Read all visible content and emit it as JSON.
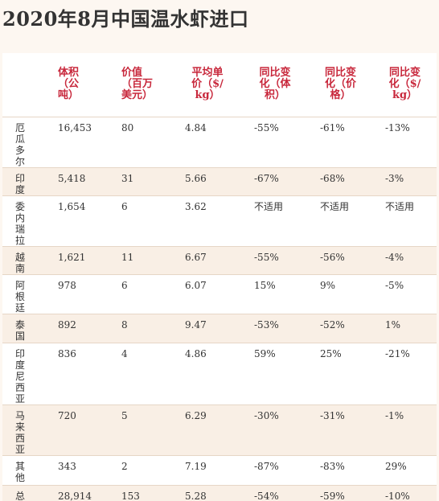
{
  "title": "2020年8月中国温水虾进口",
  "table": {
    "headers": [
      "",
      "体积（公吨）",
      "价值（百万美元）",
      "平均单价（$/kg）",
      "同比变化（体积）",
      "同比变化（价格）",
      "同比变化（$/kg）"
    ],
    "rows": [
      [
        "厄瓜多尔",
        "16,453",
        "80",
        "4.84",
        "-55%",
        "-61%",
        "-13%"
      ],
      [
        "印度",
        "5,418",
        "31",
        "5.66",
        "-67%",
        "-68%",
        "-3%"
      ],
      [
        "委内瑞拉",
        "1,654",
        "6",
        "3.62",
        "不适用",
        "不适用",
        "不适用"
      ],
      [
        "越南",
        "1,621",
        "11",
        "6.67",
        "-55%",
        "-56%",
        "-4%"
      ],
      [
        "阿根廷",
        "978",
        "6",
        "6.07",
        "15%",
        "9%",
        "-5%"
      ],
      [
        "泰国",
        "892",
        "8",
        "9.47",
        "-53%",
        "-52%",
        "1%"
      ],
      [
        "印度尼西亚",
        "836",
        "4",
        "4.86",
        "59%",
        "25%",
        "-21%"
      ],
      [
        "马来西亚",
        "720",
        "5",
        "6.29",
        "-30%",
        "-31%",
        "-1%"
      ],
      [
        "其他",
        "343",
        "2",
        "7.19",
        "-87%",
        "-83%",
        "29%"
      ],
      [
        "总",
        "28,914",
        "153",
        "5.28",
        "-54%",
        "-59%",
        "-10%"
      ]
    ]
  },
  "colors": {
    "header_text": "#c8283c",
    "row_shade": "#f9efe5",
    "background": "#fdf7f1"
  }
}
